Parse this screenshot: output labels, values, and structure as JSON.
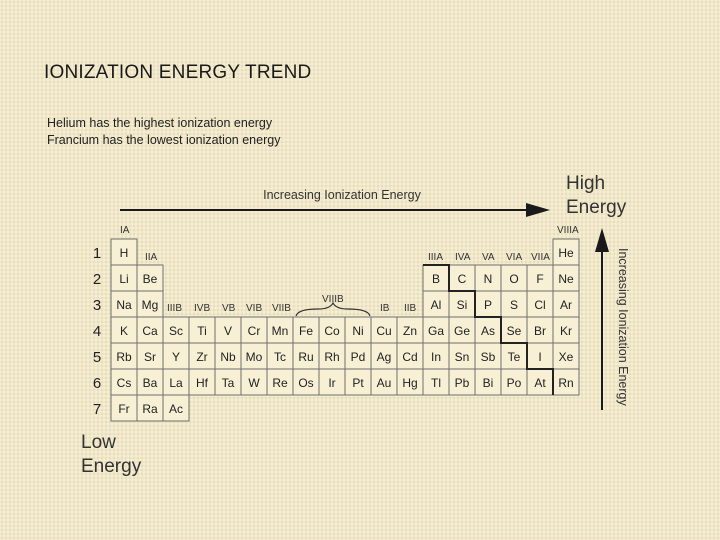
{
  "slide": {
    "title": "IONIZATION ENERGY TREND",
    "bullets": [
      "Helium has the highest ionization energy",
      "Francium has the lowest ionization energy"
    ]
  },
  "figure": {
    "top_arrow_label": "Increasing Ionization Energy",
    "side_arrow_label": "Increasing Ionization Energy",
    "high_label": [
      "High",
      "Energy"
    ],
    "low_label": [
      "Low",
      "Energy"
    ],
    "period_labels": [
      "1",
      "2",
      "3",
      "4",
      "5",
      "6",
      "7"
    ],
    "group_labels": {
      "IA": "IA",
      "IIA": "IIA",
      "IIIB": "IIIB",
      "IVB": "IVB",
      "VB": "VB",
      "VIB": "VIB",
      "VIIB": "VIIB",
      "VIIIB": "VIIIB",
      "IB": "IB",
      "IIB": "IIB",
      "IIIA": "IIIA",
      "IVA": "IVA",
      "VA": "VA",
      "VIA": "VIA",
      "VIIA": "VIIA",
      "VIIIA": "VIIIA"
    },
    "rows": [
      [
        "H",
        "",
        "",
        "",
        "",
        "",
        "",
        "",
        "",
        "",
        "",
        "",
        "",
        "",
        "",
        "",
        "",
        "He"
      ],
      [
        "Li",
        "Be",
        "",
        "",
        "",
        "",
        "",
        "",
        "",
        "",
        "",
        "",
        "B",
        "C",
        "N",
        "O",
        "F",
        "Ne"
      ],
      [
        "Na",
        "Mg",
        "",
        "",
        "",
        "",
        "",
        "",
        "",
        "",
        "",
        "",
        "Al",
        "Si",
        "P",
        "S",
        "Cl",
        "Ar"
      ],
      [
        "K",
        "Ca",
        "Sc",
        "Ti",
        "V",
        "Cr",
        "Mn",
        "Fe",
        "Co",
        "Ni",
        "Cu",
        "Zn",
        "Ga",
        "Ge",
        "As",
        "Se",
        "Br",
        "Kr"
      ],
      [
        "Rb",
        "Sr",
        "Y",
        "Zr",
        "Nb",
        "Mo",
        "Tc",
        "Ru",
        "Rh",
        "Pd",
        "Ag",
        "Cd",
        "In",
        "Sn",
        "Sb",
        "Te",
        "I",
        "Xe"
      ],
      [
        "Cs",
        "Ba",
        "La",
        "Hf",
        "Ta",
        "W",
        "Re",
        "Os",
        "Ir",
        "Pt",
        "Au",
        "Hg",
        "Tl",
        "Pb",
        "Bi",
        "Po",
        "At",
        "Rn"
      ],
      [
        "Fr",
        "Ra",
        "Ac",
        "",
        "",
        "",
        "",
        "",
        "",
        "",
        "",
        "",
        "",
        "",
        "",
        "",
        "",
        ""
      ]
    ]
  }
}
